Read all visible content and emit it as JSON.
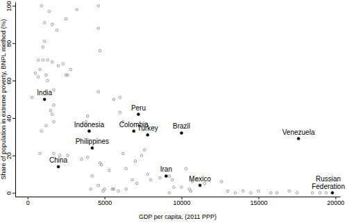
{
  "chart_data": {
    "type": "scatter",
    "x_label": "GDP per capita, (2011 PPP)",
    "y_label": "Share of population in extreme poverty, BNPL method (%)",
    "xlim": [
      -800,
      20300
    ],
    "ylim": [
      -2,
      102
    ],
    "xticks": [
      0,
      5000,
      10000,
      15000,
      20000
    ],
    "yticks": [
      0,
      20,
      40,
      60,
      80,
      100
    ],
    "grid": false,
    "series": [
      {
        "marker": "circle-open",
        "color": "#808080",
        "x": [
          900,
          4600,
          1400,
          3200,
          2500,
          1100,
          1600,
          1900,
          4600,
          1100,
          1000,
          4700,
          1000,
          1300,
          700,
          1600,
          2300,
          2000,
          2800,
          500,
          800,
          700,
          2500,
          1200,
          2600,
          1300,
          1700,
          4600,
          300,
          6000,
          5600,
          1700,
          1500,
          6000,
          1600,
          3900,
          1700,
          3800,
          6200,
          7700,
          1200,
          3800,
          900,
          4000,
          7600,
          6200,
          800,
          1700,
          2100,
          2600,
          7400,
          3900,
          3500,
          7000,
          4700,
          4800,
          6400,
          10300,
          5300,
          7800,
          4200,
          9200,
          8600,
          8000,
          9400,
          6800,
          11000,
          10700,
          12600,
          7100,
          11500,
          4600,
          9500,
          10000,
          4100,
          5000,
          5500,
          5600,
          6400,
          10500,
          4900,
          5900,
          10600,
          13000,
          14000,
          15000,
          9200,
          13500,
          14500,
          15800,
          16200,
          17000,
          17500,
          18500,
          19000,
          19400
        ],
        "values": [
          100,
          100,
          97,
          98,
          93,
          91,
          90,
          87,
          88,
          81,
          78,
          76,
          71,
          71,
          71,
          70,
          69,
          68,
          66,
          64,
          66,
          62,
          63,
          63,
          63,
          60,
          55,
          54,
          51,
          51,
          50,
          47,
          44,
          43,
          42,
          41,
          38,
          38,
          38,
          37,
          36,
          36,
          33,
          33,
          23,
          21,
          21,
          21,
          20,
          20,
          20,
          19,
          18,
          17,
          16,
          15,
          13,
          13,
          12,
          10,
          9,
          9,
          8,
          7,
          7,
          7,
          7,
          6,
          6,
          5,
          5,
          4,
          3,
          3,
          2,
          2,
          2,
          2,
          2,
          2,
          1,
          1,
          1,
          1,
          1,
          1,
          0,
          0,
          0,
          0,
          0,
          1,
          0,
          0,
          0,
          0
        ]
      },
      {
        "marker": "circle",
        "color": "#000000",
        "x": [
          1100,
          2000,
          4000,
          4200,
          7200,
          6900,
          7800,
          10000,
          17600,
          9000,
          11200,
          19800
        ],
        "values": [
          50,
          14,
          33,
          24,
          42,
          33,
          31,
          32,
          29,
          9,
          4,
          0
        ],
        "labels": [
          "India",
          "China",
          "Indonesia",
          "Philippines",
          "Peru",
          "Colombia",
          "Turkey",
          "Brazil",
          "Venezuela",
          "Iran",
          "Mexico",
          "Russian\nFederation"
        ]
      }
    ]
  }
}
